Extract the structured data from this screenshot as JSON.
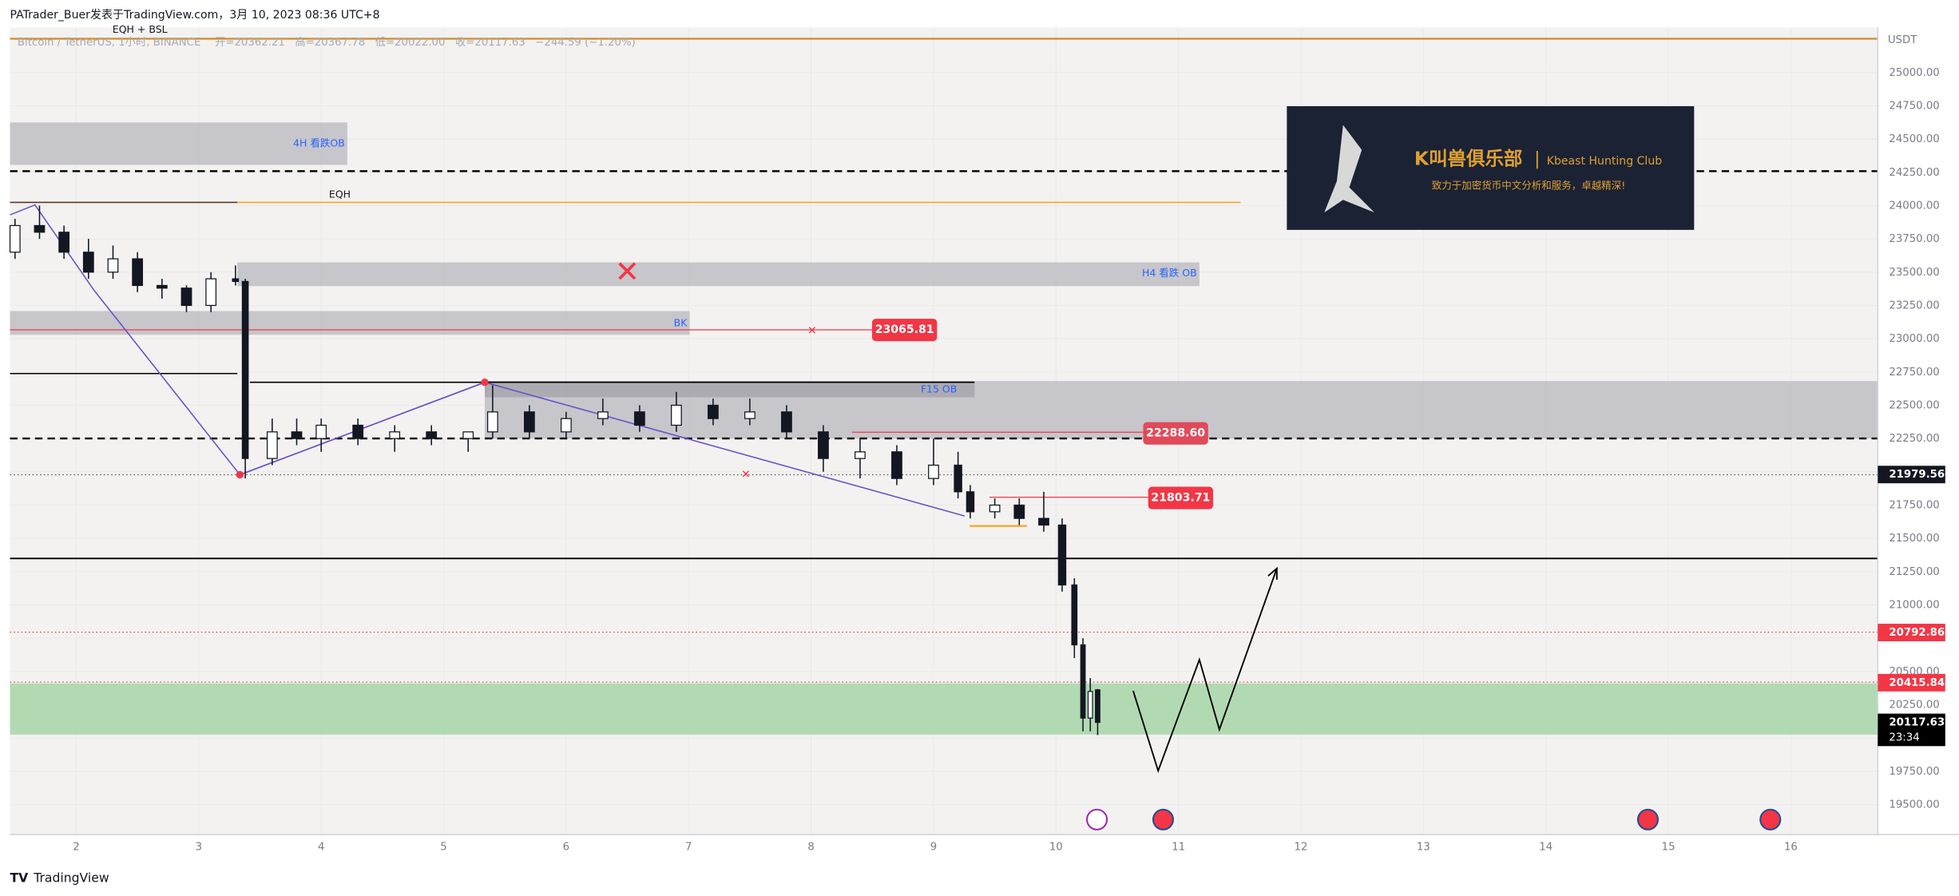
{
  "header": {
    "attribution": "PATrader_Buer发表于TradingView.com，3月 10, 2023 08:36 UTC+8"
  },
  "chart_data": {
    "type": "candlestick",
    "symbol": "Bitcoin / TetherUS, 1小时, BINANCE",
    "legend_text": [
      "开=20362.21",
      "高=20367.78",
      "低=20022.00",
      "收=20117.63",
      "−244.59 (−1.20%)"
    ],
    "currency": "USDT",
    "x": [
      1.5,
      1.7,
      1.9,
      2.1,
      2.3,
      2.5,
      2.7,
      2.9,
      3.1,
      3.3,
      3.38,
      3.6,
      3.8,
      4.0,
      4.3,
      4.6,
      4.9,
      5.2,
      5.4,
      5.7,
      6.0,
      6.3,
      6.6,
      6.9,
      7.2,
      7.5,
      7.8,
      8.1,
      8.4,
      8.7,
      9.0,
      9.2,
      9.3,
      9.5,
      9.7,
      9.9,
      10.05,
      10.15,
      10.22,
      10.28,
      10.34
    ],
    "open": [
      23650,
      23850,
      23800,
      23650,
      23500,
      23600,
      23400,
      23380,
      23250,
      23450,
      23430,
      22100,
      22300,
      22250,
      22350,
      22250,
      22300,
      22250,
      22300,
      22450,
      22300,
      22400,
      22450,
      22350,
      22500,
      22400,
      22450,
      22300,
      22100,
      22150,
      21950,
      22050,
      21850,
      21700,
      21750,
      21650,
      21600,
      21150,
      20700,
      20150,
      20362.21
    ],
    "high": [
      23900,
      24000,
      23850,
      23750,
      23700,
      23650,
      23450,
      23400,
      23500,
      23550,
      23450,
      22400,
      22400,
      22400,
      22400,
      22350,
      22350,
      22300,
      22650,
      22500,
      22450,
      22550,
      22500,
      22600,
      22550,
      22550,
      22500,
      22350,
      22250,
      22200,
      22250,
      22150,
      21900,
      21800,
      21800,
      21850,
      21650,
      21200,
      20750,
      20450,
      20367.78
    ],
    "low": [
      23600,
      23750,
      23600,
      23450,
      23450,
      23350,
      23300,
      23200,
      23200,
      23400,
      21950,
      22050,
      22200,
      22150,
      22200,
      22150,
      22200,
      22150,
      22250,
      22250,
      22250,
      22350,
      22300,
      22300,
      22350,
      22350,
      22250,
      22000,
      21950,
      21900,
      21900,
      21800,
      21650,
      21650,
      21600,
      21550,
      21100,
      20600,
      20050,
      20050,
      20022
    ],
    "close": [
      23850,
      23800,
      23650,
      23500,
      23600,
      23400,
      23380,
      23250,
      23450,
      23430,
      22100,
      22300,
      22250,
      22350,
      22250,
      22300,
      22250,
      22300,
      22450,
      22300,
      22400,
      22450,
      22350,
      22500,
      22400,
      22450,
      22300,
      22100,
      22150,
      21950,
      22050,
      21850,
      21700,
      21750,
      21650,
      21600,
      21150,
      20700,
      20150,
      20350,
      20117.63
    ],
    "up_color": "#ffffff",
    "down_color": "#131722",
    "xlim": [
      1.459,
      16.71
    ],
    "xticks": [
      2,
      3,
      4,
      5,
      6,
      7,
      8,
      9,
      10,
      11,
      12,
      13,
      14,
      15,
      16
    ],
    "ylim": [
      19275,
      25338
    ],
    "yticks": [
      {
        "value": 19500,
        "label": "19500.00"
      },
      {
        "value": 19750,
        "label": "19750.00"
      },
      {
        "value": 20000,
        "label": "20000.00"
      },
      {
        "value": 20250,
        "label": "20250.00"
      },
      {
        "value": 20500,
        "label": "20500.00"
      },
      {
        "value": 20750,
        "label": "20750.00"
      },
      {
        "value": 21000,
        "label": "21000.00"
      },
      {
        "value": 21250,
        "label": "21250.00"
      },
      {
        "value": 21500,
        "label": "21500.00"
      },
      {
        "value": 21750,
        "label": "21750.00"
      },
      {
        "value": 22000,
        "label": "22000.00"
      },
      {
        "value": 22250,
        "label": "22250.00"
      },
      {
        "value": 22500,
        "label": "22500.00"
      },
      {
        "value": 22750,
        "label": "22750.00"
      },
      {
        "value": 23000,
        "label": "23000.00"
      },
      {
        "value": 23250,
        "label": "23250.00"
      },
      {
        "value": 23500,
        "label": "23500.00"
      },
      {
        "value": 23750,
        "label": "23750.00"
      },
      {
        "value": 24000,
        "label": "24000.00"
      },
      {
        "value": 24250,
        "label": "24250.00"
      },
      {
        "value": 24500,
        "label": "24500.00"
      },
      {
        "value": 24750,
        "label": "24750.00"
      },
      {
        "value": 25000,
        "label": "25000.00"
      }
    ],
    "axis_labels": [
      {
        "value": 21979.56,
        "color": "#131722"
      },
      {
        "value": 20792.86,
        "color": "#f23645"
      },
      {
        "value": 20415.84,
        "color": "#f23645"
      },
      {
        "value": 20117.63,
        "color": "#000000",
        "countdown": "23:34"
      }
    ],
    "price_tags": [
      {
        "value": 23065.81,
        "color": "#f23645"
      },
      {
        "value": 22288.6,
        "label": "22288.60",
        "color": "#e04a5a"
      },
      {
        "value": 21803.71,
        "color": "#f23645"
      }
    ],
    "annotations": [
      "EQH + BSL",
      "4H 看跌OB",
      "EQH",
      "H4 看跌 OB",
      "BK",
      "F15 OB"
    ]
  },
  "logo": {
    "title": "K叫兽俱乐部",
    "subtitle": "Kbeast Hunting Club",
    "tagline": "致力于加密货币中文分析和服务，卓越精深!"
  },
  "footer": {
    "brand": "TradingView"
  }
}
